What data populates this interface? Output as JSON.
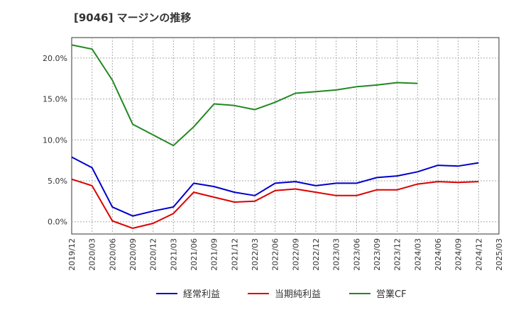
{
  "chart_data": {
    "type": "line",
    "title": "[9046]  マージンの推移",
    "xlabel": "",
    "ylabel": "",
    "ylim": [
      -1.5,
      22.5
    ],
    "y_ticks": [
      0,
      5,
      10,
      15,
      20
    ],
    "y_tick_labels": [
      "0.0%",
      "5.0%",
      "10.0%",
      "15.0%",
      "20.0%"
    ],
    "grid": true,
    "legend_position": "bottom",
    "x": [
      "2019/12",
      "2020/03",
      "2020/06",
      "2020/09",
      "2020/12",
      "2021/03",
      "2021/06",
      "2021/09",
      "2021/12",
      "2022/03",
      "2022/06",
      "2022/09",
      "2022/12",
      "2023/03",
      "2023/06",
      "2023/09",
      "2023/12",
      "2024/03",
      "2024/06",
      "2024/09",
      "2024/12",
      "2025/03"
    ],
    "series": [
      {
        "name": "経常利益",
        "color": "#0000cc",
        "values": [
          7.9,
          6.6,
          1.8,
          0.7,
          1.3,
          1.8,
          4.7,
          4.3,
          3.6,
          3.2,
          4.7,
          4.9,
          4.4,
          4.7,
          4.7,
          5.4,
          5.6,
          6.1,
          6.9,
          6.8,
          7.2,
          null
        ]
      },
      {
        "name": "当期純利益",
        "color": "#dd0000",
        "values": [
          5.2,
          4.4,
          0.1,
          -0.8,
          -0.2,
          1.0,
          3.6,
          3.0,
          2.4,
          2.5,
          3.8,
          4.0,
          3.6,
          3.2,
          3.2,
          3.9,
          3.9,
          4.6,
          4.9,
          4.8,
          4.9,
          null
        ]
      },
      {
        "name": "営業CF",
        "color": "#228822",
        "values": [
          21.6,
          21.1,
          17.3,
          11.9,
          10.6,
          9.3,
          11.6,
          14.4,
          14.2,
          13.7,
          14.6,
          15.7,
          15.9,
          16.1,
          16.5,
          16.7,
          17.0,
          16.9,
          null,
          null,
          null,
          null
        ]
      }
    ]
  }
}
